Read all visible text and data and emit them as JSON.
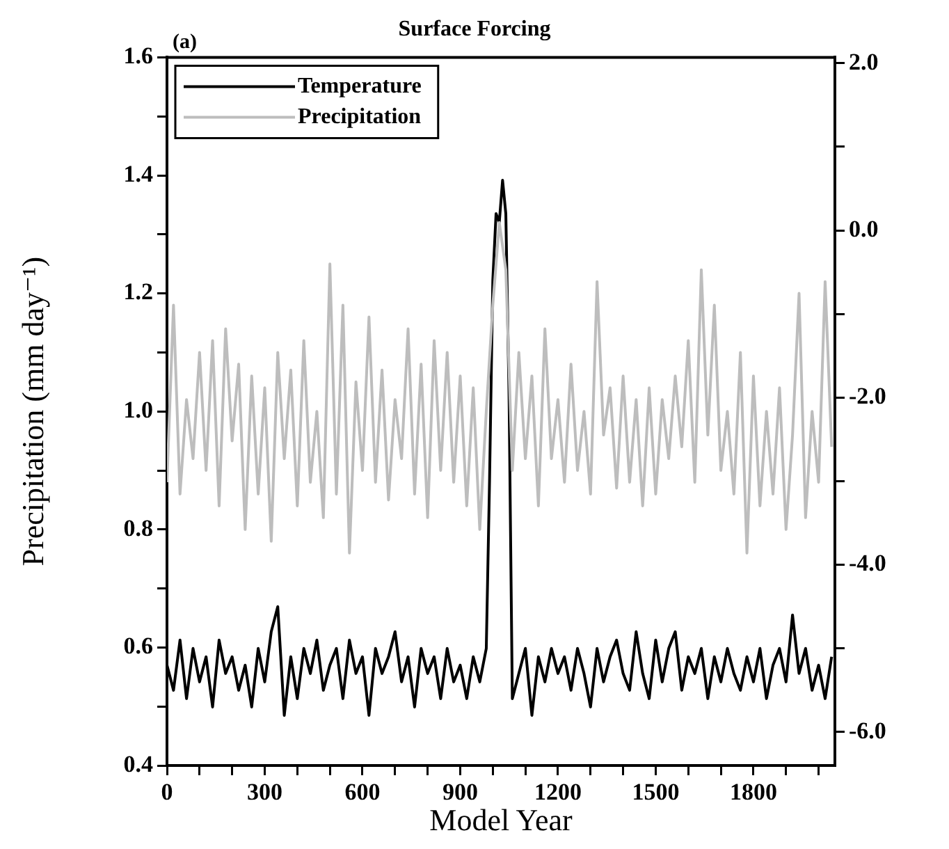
{
  "chart_data": {
    "type": "line",
    "title": "Surface Forcing",
    "annotations": [
      "(a)"
    ],
    "xlabel": "Model Year",
    "ylabel": "Precipitation (mm day⁻¹)",
    "xlim": [
      0,
      2050
    ],
    "xticks": [
      0,
      {
        "value": 100,
        "label": null
      },
      {
        "value": 200,
        "label": null
      },
      300,
      {
        "value": 400,
        "label": null
      },
      {
        "value": 500,
        "label": null
      },
      600,
      {
        "value": 700,
        "label": null
      },
      {
        "value": 800,
        "label": null
      },
      900,
      {
        "value": 1000,
        "label": null
      },
      {
        "value": 1100,
        "label": null
      },
      1200,
      {
        "value": 1300,
        "label": null
      },
      {
        "value": 1400,
        "label": null
      },
      1500,
      {
        "value": 1600,
        "label": null
      },
      {
        "value": 1700,
        "label": null
      },
      1800,
      {
        "value": 1900,
        "label": null
      },
      {
        "value": 2000,
        "label": null
      }
    ],
    "ylim": [
      0.4,
      1.6
    ],
    "yticks": [
      {
        "value": 0.4,
        "label": "0.4"
      },
      {
        "value": 0.5,
        "label": null
      },
      {
        "value": 0.6,
        "label": "0.6"
      },
      {
        "value": 0.7,
        "label": null
      },
      {
        "value": 0.8,
        "label": "0.8"
      },
      {
        "value": 0.9,
        "label": null
      },
      {
        "value": 1.0,
        "label": "1.0"
      },
      {
        "value": 1.1,
        "label": null
      },
      {
        "value": 1.2,
        "label": "1.2"
      },
      {
        "value": 1.3,
        "label": null
      },
      {
        "value": 1.4,
        "label": "1.4"
      },
      {
        "value": 1.5,
        "label": null
      },
      {
        "value": 1.6,
        "label": "1.6"
      }
    ],
    "y2lim": [
      -6.4,
      2.07
    ],
    "y2ticks": [
      {
        "value": -6,
        "label": "-6.0"
      },
      {
        "value": -5,
        "label": null
      },
      {
        "value": -4,
        "label": "-4.0"
      },
      {
        "value": -3,
        "label": null
      },
      {
        "value": -2,
        "label": "-2.0"
      },
      {
        "value": -1,
        "label": null
      },
      {
        "value": 0,
        "label": "0.0"
      },
      {
        "value": 1,
        "label": null
      },
      {
        "value": 2,
        "label": "2.0"
      }
    ],
    "grid": false,
    "legend": "top left",
    "series": [
      {
        "name": "Temperature",
        "color": "#000000",
        "axis": "y2",
        "x": [
          0,
          20,
          40,
          60,
          80,
          100,
          120,
          140,
          160,
          180,
          200,
          220,
          240,
          260,
          280,
          300,
          320,
          340,
          360,
          380,
          400,
          420,
          440,
          460,
          480,
          500,
          520,
          540,
          560,
          580,
          600,
          620,
          640,
          660,
          680,
          700,
          720,
          740,
          760,
          780,
          800,
          820,
          840,
          860,
          880,
          900,
          920,
          940,
          960,
          980,
          990,
          1000,
          1010,
          1020,
          1030,
          1040,
          1050,
          1060,
          1080,
          1100,
          1120,
          1140,
          1160,
          1180,
          1200,
          1220,
          1240,
          1260,
          1280,
          1300,
          1320,
          1340,
          1360,
          1380,
          1400,
          1420,
          1440,
          1460,
          1480,
          1500,
          1520,
          1540,
          1560,
          1580,
          1600,
          1620,
          1640,
          1660,
          1680,
          1700,
          1720,
          1740,
          1760,
          1780,
          1800,
          1820,
          1840,
          1860,
          1880,
          1900,
          1920,
          1940,
          1960,
          1980,
          2000,
          2020,
          2040
        ],
        "values": [
          -5.2,
          -5.5,
          -4.9,
          -5.6,
          -5.0,
          -5.4,
          -5.1,
          -5.7,
          -4.9,
          -5.3,
          -5.1,
          -5.5,
          -5.2,
          -5.7,
          -5.0,
          -5.4,
          -4.8,
          -4.5,
          -5.8,
          -5.1,
          -5.6,
          -5.0,
          -5.3,
          -4.9,
          -5.5,
          -5.2,
          -5.0,
          -5.6,
          -4.9,
          -5.3,
          -5.1,
          -5.8,
          -5.0,
          -5.3,
          -5.1,
          -4.8,
          -5.4,
          -5.1,
          -5.7,
          -5.0,
          -5.3,
          -5.1,
          -5.6,
          -5.0,
          -5.4,
          -5.2,
          -5.6,
          -5.1,
          -5.4,
          -5.0,
          -3.0,
          -0.6,
          0.2,
          0.1,
          0.6,
          0.2,
          -2.0,
          -5.6,
          -5.3,
          -5.0,
          -5.8,
          -5.1,
          -5.4,
          -5.0,
          -5.3,
          -5.1,
          -5.5,
          -5.0,
          -5.3,
          -5.7,
          -5.0,
          -5.4,
          -5.1,
          -4.9,
          -5.3,
          -5.5,
          -4.8,
          -5.3,
          -5.6,
          -4.9,
          -5.4,
          -5.0,
          -4.8,
          -5.5,
          -5.1,
          -5.3,
          -5.0,
          -5.6,
          -5.1,
          -5.4,
          -5.0,
          -5.3,
          -5.5,
          -5.1,
          -5.4,
          -5.0,
          -5.6,
          -5.2,
          -5.0,
          -5.4,
          -4.6,
          -5.3,
          -5.0,
          -5.5,
          -5.2,
          -5.6,
          -5.1
        ]
      },
      {
        "name": "Precipitation",
        "color": "#bdbdbd",
        "x": [
          0,
          20,
          40,
          60,
          80,
          100,
          120,
          140,
          160,
          180,
          200,
          220,
          240,
          260,
          280,
          300,
          320,
          340,
          360,
          380,
          400,
          420,
          440,
          460,
          480,
          500,
          520,
          540,
          560,
          580,
          600,
          620,
          640,
          660,
          680,
          700,
          720,
          740,
          760,
          780,
          800,
          820,
          840,
          860,
          880,
          900,
          920,
          940,
          960,
          980,
          1000,
          1020,
          1040,
          1060,
          1080,
          1100,
          1120,
          1140,
          1160,
          1180,
          1200,
          1220,
          1240,
          1260,
          1280,
          1300,
          1320,
          1340,
          1360,
          1380,
          1400,
          1420,
          1440,
          1460,
          1480,
          1500,
          1520,
          1540,
          1560,
          1580,
          1600,
          1620,
          1640,
          1660,
          1680,
          1700,
          1720,
          1740,
          1760,
          1780,
          1800,
          1820,
          1840,
          1860,
          1880,
          1900,
          1920,
          1940,
          1960,
          1980,
          2000,
          2020,
          2040
        ],
        "values": [
          0.88,
          1.18,
          0.86,
          1.02,
          0.92,
          1.1,
          0.9,
          1.12,
          0.84,
          1.14,
          0.95,
          1.08,
          0.8,
          1.06,
          0.86,
          1.04,
          0.78,
          1.1,
          0.92,
          1.07,
          0.84,
          1.12,
          0.88,
          1.0,
          0.82,
          1.25,
          0.86,
          1.18,
          0.76,
          1.05,
          0.9,
          1.16,
          0.88,
          1.07,
          0.85,
          1.02,
          0.92,
          1.14,
          0.86,
          1.08,
          0.82,
          1.12,
          0.9,
          1.1,
          0.88,
          1.06,
          0.84,
          1.04,
          0.8,
          1.0,
          1.18,
          1.32,
          1.24,
          0.9,
          1.1,
          0.92,
          1.06,
          0.84,
          1.14,
          0.92,
          1.02,
          0.88,
          1.08,
          0.9,
          1.0,
          0.86,
          1.22,
          0.96,
          1.04,
          0.87,
          1.06,
          0.88,
          1.02,
          0.84,
          1.04,
          0.86,
          1.02,
          0.92,
          1.06,
          0.94,
          1.12,
          0.88,
          1.24,
          0.96,
          1.18,
          0.9,
          1.0,
          0.86,
          1.1,
          0.76,
          1.06,
          0.84,
          1.0,
          0.86,
          1.04,
          0.8,
          0.96,
          1.2,
          0.82,
          1.0,
          0.88,
          1.22,
          0.94
        ]
      }
    ]
  }
}
